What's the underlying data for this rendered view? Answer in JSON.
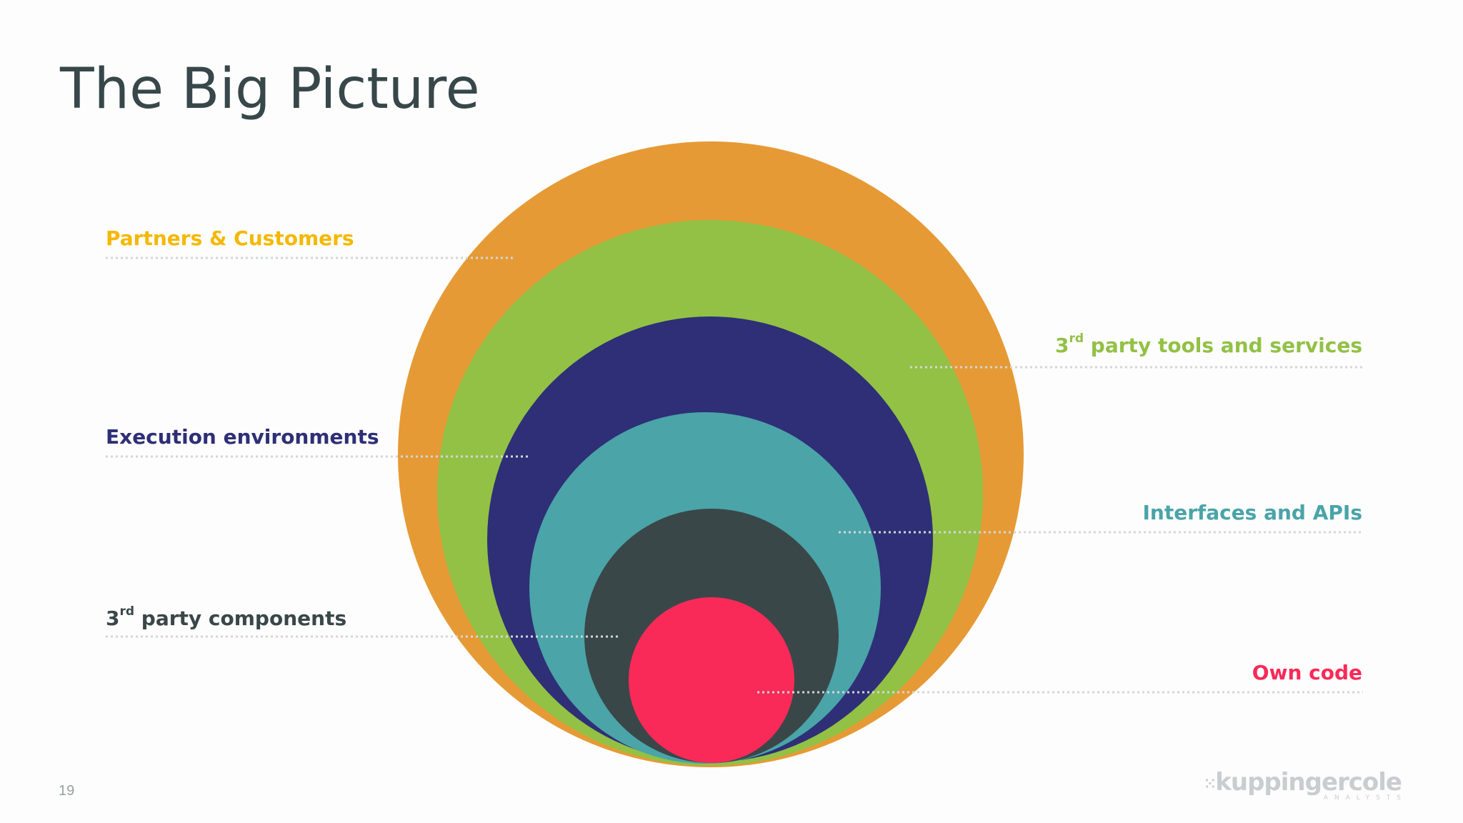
{
  "title": "The Big Picture",
  "page_number": "19",
  "logo": {
    "main": "kuppingercole",
    "sub": "ANALYSTS"
  },
  "labels": {
    "partners": "Partners & Customers",
    "execution": "Execution environments",
    "components_prefix": "3",
    "components_sup": "rd",
    "components_rest": " party components",
    "tools_prefix": "3",
    "tools_sup": "rd",
    "tools_rest": " party tools and services",
    "interfaces": "Interfaces and APIs",
    "own_code": "Own code"
  },
  "colors": {
    "partners": "#e69a35",
    "tools": "#92c145",
    "execution": "#2e2f76",
    "interfaces": "#4aa4a8",
    "components": "#3a4749",
    "own_code": "#f92a58",
    "partners_text": "#f5b800",
    "dots": "#cfd3d4"
  }
}
